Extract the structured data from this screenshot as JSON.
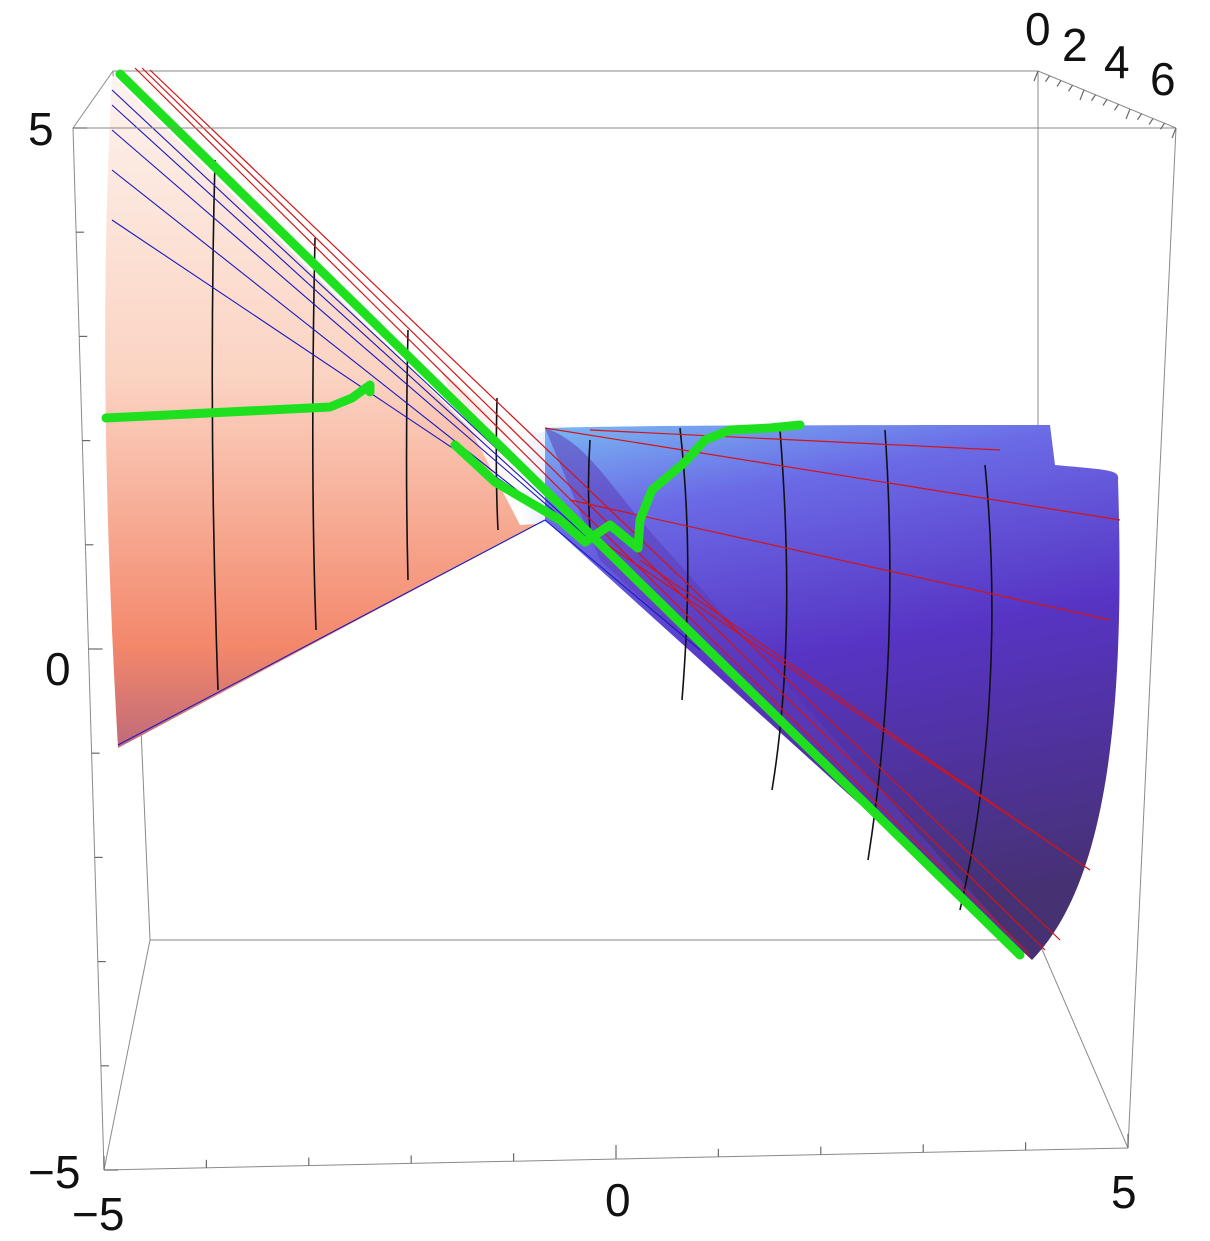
{
  "chart_data": {
    "type": "surface3d",
    "title": "",
    "axes": {
      "x": {
        "label": "",
        "range": [
          -5,
          5
        ],
        "ticks": [
          "−5",
          "0",
          "5"
        ]
      },
      "y": {
        "label": "",
        "range": [
          0,
          6
        ],
        "ticks": [
          "0",
          "2",
          "4",
          "6"
        ]
      },
      "z": {
        "label": "",
        "range": [
          -5,
          5
        ],
        "ticks": [
          "−5",
          "0",
          "5"
        ]
      }
    },
    "grid": false,
    "legend": "none",
    "surface": {
      "description_shape": "hyperboloid-of-one-sheet (saddle throat near x=0)",
      "color_left": "#f07a5c",
      "color_left_light": "#fdf1ea",
      "color_right": "#4a2f8e",
      "color_right_light": "#6fb3f5"
    },
    "curves": [
      {
        "name": "",
        "color": "#22e022",
        "role": "highlighted path"
      }
    ],
    "rulings": {
      "red": "#d01010",
      "blue": "#1010c0",
      "black": "#111111"
    }
  }
}
